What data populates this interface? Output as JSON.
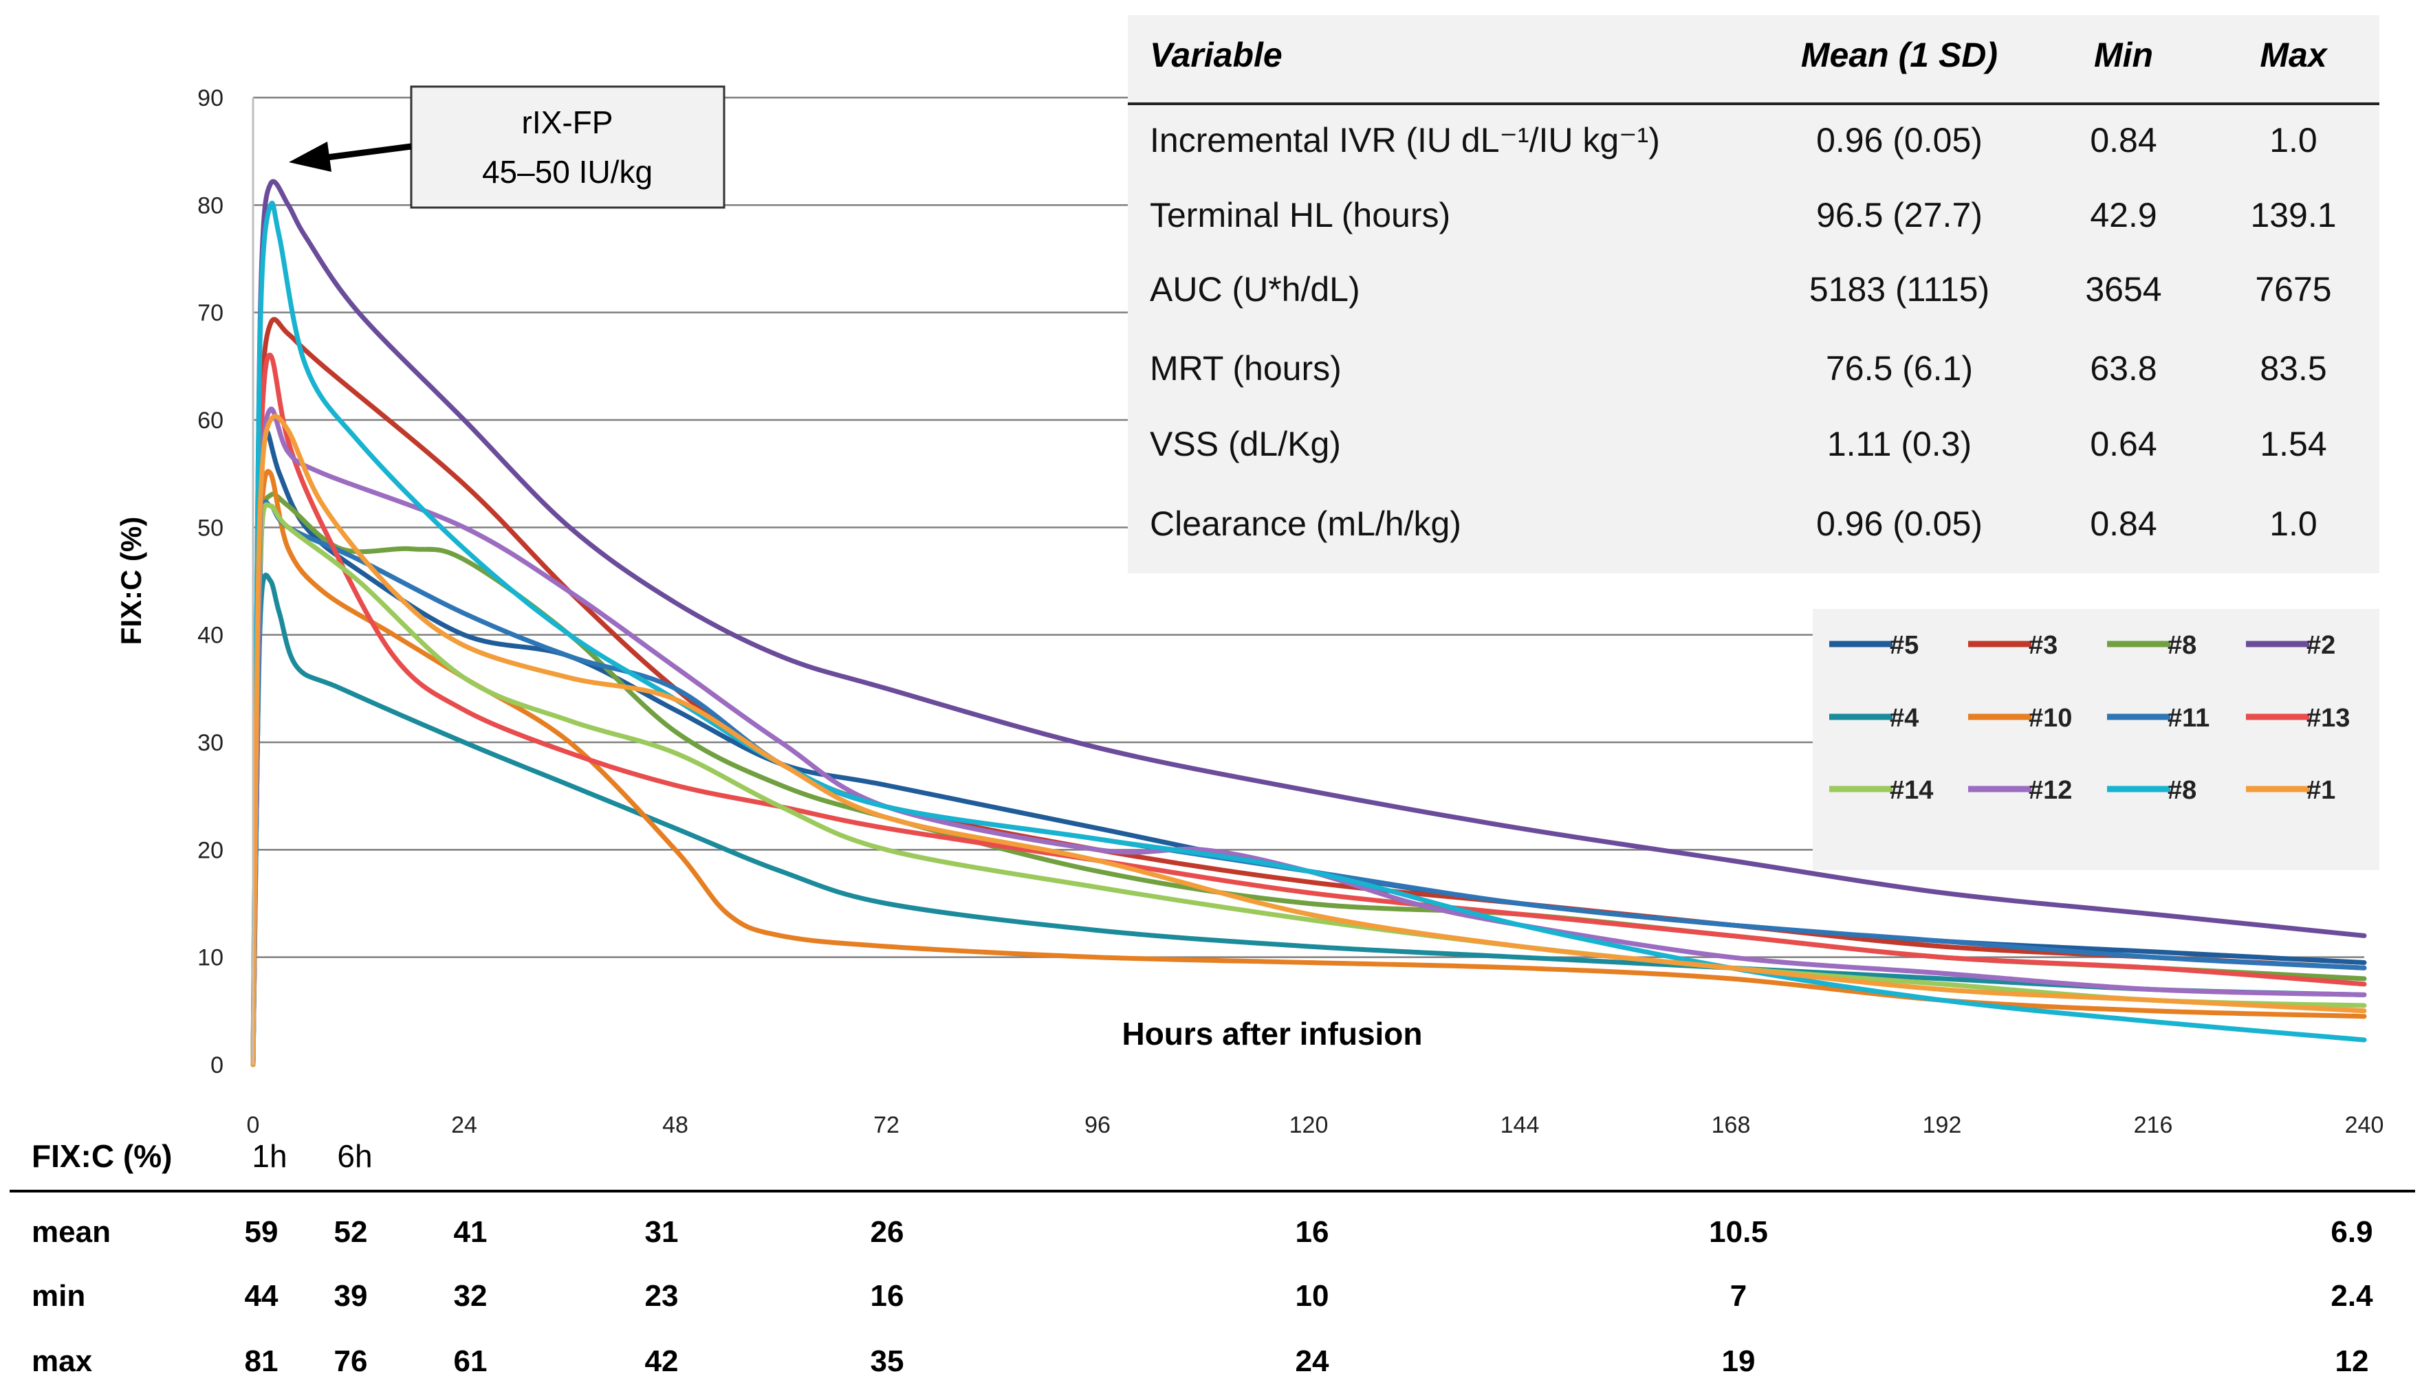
{
  "chart_data": {
    "type": "line",
    "ylabel": "FIX:C  (%)",
    "xlabel": "Hours  after infusion",
    "xlim": [
      0,
      240
    ],
    "ylim": [
      0,
      90
    ],
    "xticks": [
      0,
      24,
      48,
      72,
      96,
      120,
      144,
      168,
      192,
      216,
      240
    ],
    "yticks": [
      0,
      10,
      20,
      30,
      40,
      50,
      60,
      70,
      80,
      90
    ],
    "grid": true,
    "annotation": {
      "line1": "rIX-FP",
      "line2": "45–50 IU/kg"
    },
    "legend_position": "right",
    "series": [
      {
        "name": "#5",
        "color": "#1F5C99",
        "points": [
          [
            0,
            0
          ],
          [
            0.5,
            30
          ],
          [
            1,
            55
          ],
          [
            1.5,
            59
          ],
          [
            3,
            55
          ],
          [
            6,
            50
          ],
          [
            12,
            46
          ],
          [
            24,
            40
          ],
          [
            36,
            38
          ],
          [
            48,
            33
          ],
          [
            60,
            28
          ],
          [
            72,
            26
          ],
          [
            96,
            22
          ],
          [
            120,
            18
          ],
          [
            144,
            15
          ],
          [
            168,
            13
          ],
          [
            192,
            11.5
          ],
          [
            216,
            10.5
          ],
          [
            240,
            9.5
          ]
        ]
      },
      {
        "name": "#3",
        "color": "#C0392B",
        "points": [
          [
            0,
            0
          ],
          [
            0.5,
            40
          ],
          [
            1,
            62
          ],
          [
            2,
            69
          ],
          [
            4,
            68
          ],
          [
            8,
            65
          ],
          [
            24,
            54
          ],
          [
            36,
            44
          ],
          [
            48,
            35
          ],
          [
            60,
            28
          ],
          [
            72,
            24
          ],
          [
            96,
            20
          ],
          [
            120,
            17
          ],
          [
            144,
            15
          ],
          [
            168,
            13
          ],
          [
            192,
            11
          ],
          [
            216,
            10
          ],
          [
            240,
            9
          ]
        ]
      },
      {
        "name": "#8",
        "color": "#70A040",
        "points": [
          [
            0,
            0
          ],
          [
            0.5,
            35
          ],
          [
            1,
            50
          ],
          [
            2,
            53
          ],
          [
            4,
            52
          ],
          [
            10,
            48
          ],
          [
            18,
            48
          ],
          [
            24,
            47
          ],
          [
            36,
            40
          ],
          [
            48,
            31
          ],
          [
            60,
            26
          ],
          [
            72,
            23
          ],
          [
            96,
            18
          ],
          [
            120,
            15
          ],
          [
            144,
            14
          ],
          [
            168,
            12
          ],
          [
            192,
            10
          ],
          [
            216,
            9
          ],
          [
            240,
            8
          ]
        ]
      },
      {
        "name": "#2",
        "color": "#6B4C9A",
        "points": [
          [
            0,
            0
          ],
          [
            0.5,
            50
          ],
          [
            1,
            75
          ],
          [
            2,
            82
          ],
          [
            4,
            80
          ],
          [
            6,
            77
          ],
          [
            12,
            70
          ],
          [
            24,
            60
          ],
          [
            36,
            50
          ],
          [
            48,
            43
          ],
          [
            60,
            38
          ],
          [
            72,
            35
          ],
          [
            96,
            29.5
          ],
          [
            120,
            25.5
          ],
          [
            144,
            22
          ],
          [
            168,
            19
          ],
          [
            192,
            16
          ],
          [
            216,
            14
          ],
          [
            240,
            12
          ]
        ]
      },
      {
        "name": "#4",
        "color": "#1B8A9A",
        "points": [
          [
            0,
            0
          ],
          [
            0.5,
            30
          ],
          [
            1,
            44
          ],
          [
            2,
            45
          ],
          [
            3,
            42
          ],
          [
            5,
            37
          ],
          [
            10,
            35
          ],
          [
            24,
            30
          ],
          [
            36,
            26
          ],
          [
            48,
            22
          ],
          [
            60,
            18
          ],
          [
            72,
            15
          ],
          [
            96,
            12.5
          ],
          [
            120,
            11
          ],
          [
            144,
            10
          ],
          [
            168,
            9
          ],
          [
            192,
            8
          ],
          [
            216,
            7
          ],
          [
            240,
            6.5
          ]
        ]
      },
      {
        "name": "#10",
        "color": "#E67E22",
        "points": [
          [
            0,
            0
          ],
          [
            0.5,
            38
          ],
          [
            1,
            52
          ],
          [
            2,
            55
          ],
          [
            4,
            48
          ],
          [
            8,
            44
          ],
          [
            16,
            40
          ],
          [
            24,
            36
          ],
          [
            36,
            30
          ],
          [
            48,
            20
          ],
          [
            54,
            14
          ],
          [
            60,
            12
          ],
          [
            72,
            11
          ],
          [
            96,
            10
          ],
          [
            120,
            9.5
          ],
          [
            144,
            9
          ],
          [
            168,
            8
          ],
          [
            192,
            6
          ],
          [
            216,
            5
          ],
          [
            240,
            4.5
          ]
        ]
      },
      {
        "name": "#11",
        "color": "#2E75B6",
        "points": [
          [
            0,
            0
          ],
          [
            0.5,
            30
          ],
          [
            1,
            50
          ],
          [
            2,
            52
          ],
          [
            4,
            50
          ],
          [
            12,
            47
          ],
          [
            24,
            42
          ],
          [
            36,
            38
          ],
          [
            48,
            35
          ],
          [
            60,
            28
          ],
          [
            72,
            24
          ],
          [
            96,
            21
          ],
          [
            120,
            18
          ],
          [
            144,
            15
          ],
          [
            168,
            13
          ],
          [
            192,
            11.5
          ],
          [
            216,
            10
          ],
          [
            240,
            9
          ]
        ]
      },
      {
        "name": "#13",
        "color": "#E84C4C",
        "points": [
          [
            0,
            0
          ],
          [
            0.5,
            40
          ],
          [
            1,
            60
          ],
          [
            2,
            66
          ],
          [
            4,
            58
          ],
          [
            8,
            50
          ],
          [
            16,
            38
          ],
          [
            24,
            33
          ],
          [
            36,
            29
          ],
          [
            48,
            26
          ],
          [
            60,
            24
          ],
          [
            72,
            22
          ],
          [
            96,
            19
          ],
          [
            120,
            16
          ],
          [
            144,
            14
          ],
          [
            168,
            12
          ],
          [
            192,
            10
          ],
          [
            216,
            9
          ],
          [
            240,
            7.5
          ]
        ]
      },
      {
        "name": "#14",
        "color": "#9BC95B",
        "points": [
          [
            0,
            0
          ],
          [
            0.5,
            35
          ],
          [
            1,
            50
          ],
          [
            2,
            52
          ],
          [
            4,
            50
          ],
          [
            12,
            45
          ],
          [
            24,
            36
          ],
          [
            36,
            32
          ],
          [
            48,
            29
          ],
          [
            60,
            24
          ],
          [
            72,
            20
          ],
          [
            96,
            16.5
          ],
          [
            120,
            13.5
          ],
          [
            144,
            11
          ],
          [
            168,
            9
          ],
          [
            192,
            7.5
          ],
          [
            216,
            6
          ],
          [
            240,
            5.5
          ]
        ]
      },
      {
        "name": "#12",
        "color": "#9B6CC0",
        "points": [
          [
            0,
            0
          ],
          [
            0.5,
            35
          ],
          [
            1,
            55
          ],
          [
            2,
            61
          ],
          [
            4,
            57
          ],
          [
            8,
            55
          ],
          [
            24,
            50
          ],
          [
            36,
            44
          ],
          [
            48,
            37
          ],
          [
            60,
            30
          ],
          [
            72,
            24
          ],
          [
            96,
            20
          ],
          [
            108,
            20
          ],
          [
            120,
            18
          ],
          [
            132,
            15
          ],
          [
            144,
            13
          ],
          [
            168,
            10
          ],
          [
            192,
            8.5
          ],
          [
            216,
            7
          ],
          [
            240,
            6.5
          ]
        ]
      },
      {
        "name": "#8",
        "color": "#17B3D0",
        "points": [
          [
            0,
            0
          ],
          [
            0.5,
            50
          ],
          [
            1,
            73
          ],
          [
            2,
            80
          ],
          [
            3,
            77
          ],
          [
            6,
            65
          ],
          [
            12,
            58
          ],
          [
            24,
            48
          ],
          [
            36,
            40
          ],
          [
            48,
            34
          ],
          [
            60,
            28
          ],
          [
            72,
            24
          ],
          [
            96,
            21
          ],
          [
            120,
            18
          ],
          [
            144,
            13
          ],
          [
            168,
            9
          ],
          [
            192,
            6
          ],
          [
            216,
            4
          ],
          [
            240,
            2.3
          ]
        ]
      },
      {
        "name": "#1",
        "color": "#F39C3A",
        "points": [
          [
            0,
            0
          ],
          [
            0.5,
            40
          ],
          [
            1,
            55
          ],
          [
            2,
            60
          ],
          [
            4,
            59
          ],
          [
            8,
            52
          ],
          [
            16,
            44
          ],
          [
            24,
            39
          ],
          [
            36,
            36
          ],
          [
            48,
            34
          ],
          [
            60,
            28
          ],
          [
            72,
            23
          ],
          [
            96,
            19
          ],
          [
            120,
            14
          ],
          [
            144,
            11
          ],
          [
            168,
            9
          ],
          [
            192,
            7
          ],
          [
            216,
            6
          ],
          [
            240,
            5
          ]
        ]
      }
    ]
  },
  "param_table": {
    "headers": [
      "Variable",
      "Mean (1 SD)",
      "Min",
      "Max"
    ],
    "rows": [
      [
        "Incremental IVR (IU dL⁻¹/IU kg⁻¹)",
        "0.96 (0.05)",
        "0.84",
        "1.0"
      ],
      [
        "Terminal HL (hours)",
        "96.5 (27.7)",
        "42.9",
        "139.1"
      ],
      [
        "AUC (U*h/dL)",
        "5183 (1115)",
        "3654",
        "7675"
      ],
      [
        "MRT (hours)",
        "76.5 (6.1)",
        "63.8",
        "83.5"
      ],
      [
        "VSS (dL/Kg)",
        "1.11 (0.3)",
        "0.64",
        "1.54"
      ],
      [
        "Clearance (mL/h/kg)",
        "0.96 (0.05)",
        "0.84",
        "1.0"
      ]
    ]
  },
  "summary_table": {
    "label": "FIX:C (%)",
    "time_labels": [
      "1h",
      "6h"
    ],
    "columns": [
      1,
      6,
      24,
      48,
      72,
      120,
      168,
      240
    ],
    "rows": [
      {
        "name": "mean",
        "values": [
          "59",
          "52",
          "41",
          "31",
          "26",
          "16",
          "10.5",
          "6.9"
        ]
      },
      {
        "name": "min",
        "values": [
          "44",
          "39",
          "32",
          "23",
          "16",
          "10",
          "7",
          "2.4"
        ]
      },
      {
        "name": "max",
        "values": [
          "81",
          "76",
          "61",
          "42",
          "35",
          "24",
          "19",
          "12"
        ]
      }
    ]
  }
}
